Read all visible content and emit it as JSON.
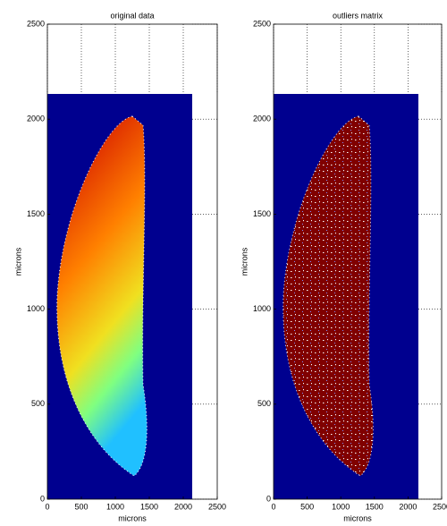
{
  "chart_data": [
    {
      "type": "image",
      "title": "original data",
      "xlabel": "microns",
      "ylabel": "microns",
      "xlim": [
        0,
        2500
      ],
      "ylim": [
        0,
        2500
      ],
      "xticks": [
        0,
        500,
        1000,
        1500,
        2000,
        2500
      ],
      "yticks": [
        0,
        500,
        1000,
        1500,
        2000,
        2500
      ],
      "grid": true
    },
    {
      "type": "image",
      "title": "outliers matrix",
      "xlabel": "microns",
      "ylabel": "microns",
      "xlim": [
        0,
        2500
      ],
      "ylim": [
        0,
        2500
      ],
      "xticks": [
        0,
        500,
        1000,
        1500,
        2000,
        2500
      ],
      "yticks": [
        0,
        500,
        1000,
        1500,
        2000,
        2500
      ],
      "grid": true
    }
  ]
}
